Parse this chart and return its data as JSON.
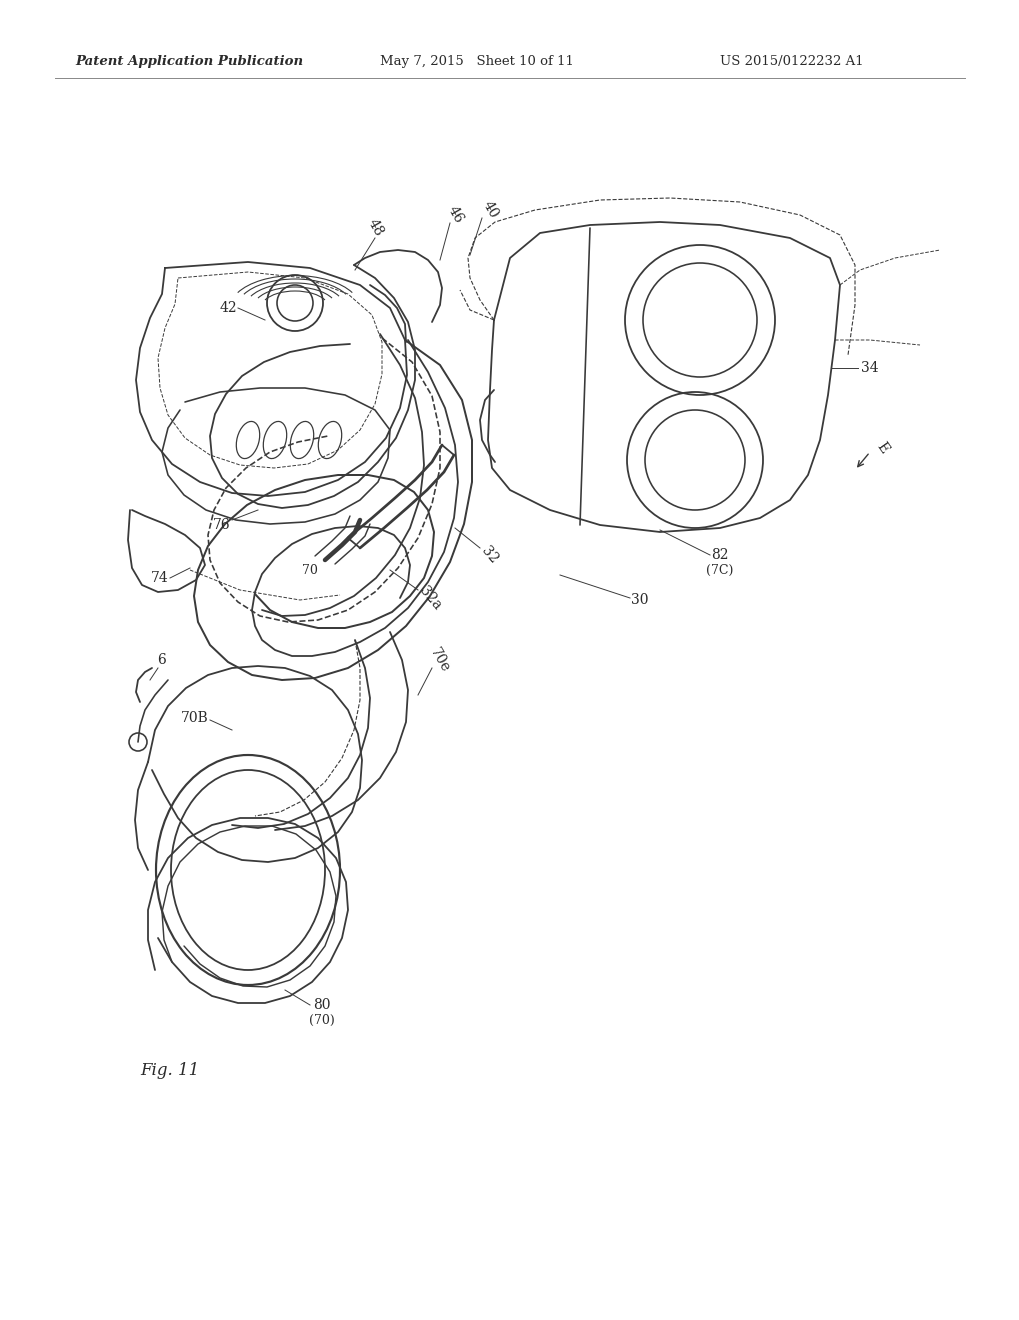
{
  "header_left": "Patent Application Publication",
  "header_mid": "May 7, 2015   Sheet 10 of 11",
  "header_right": "US 2015/0122232 A1",
  "fig_label": "Fig. 11",
  "background_color": "#ffffff",
  "line_color": "#3a3a3a",
  "text_color": "#2a2a2a",
  "lw_main": 1.3,
  "lw_thin": 0.8,
  "lw_thick": 2.0
}
